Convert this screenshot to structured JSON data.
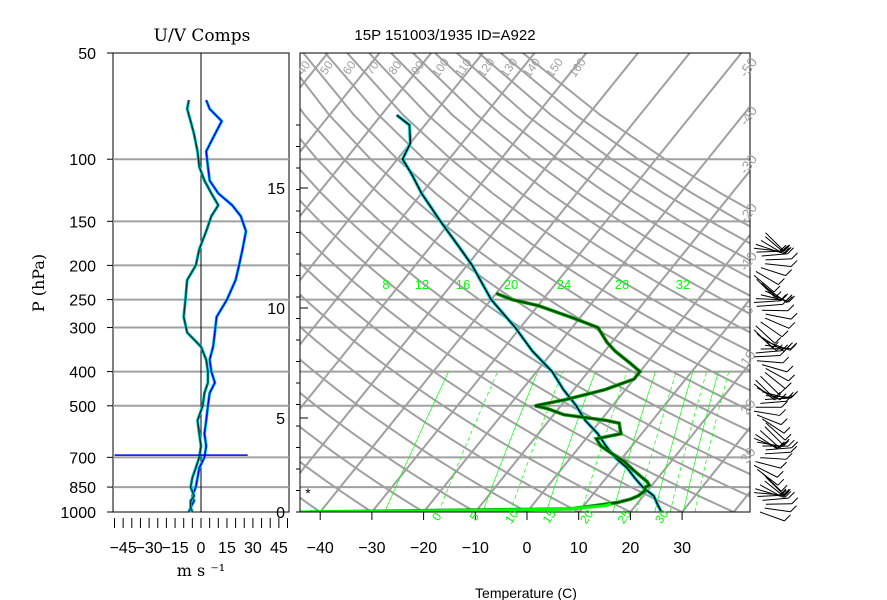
{
  "figure": {
    "title": "15P 151003/1935 ID=A922",
    "xlabel": "Temperature (C)"
  },
  "colors": {
    "temperature": "#000000",
    "temperature_under": "#00e0e0",
    "dewpoint": "#003c00",
    "dewpoint_under": "#00a000",
    "parcel": "#00ff00",
    "grid": "#a0a0a0",
    "mixing_ratio": "#00ff00",
    "u_line": "#0000ff",
    "v_line": "#00cccc"
  },
  "chart_data": [
    {
      "type": "line",
      "panel": "uv-components",
      "title": "U/V Comps",
      "xlabel": "m s ⁻¹",
      "ylabel": "P (hPa)",
      "xlim": [
        -50,
        50
      ],
      "ylim": [
        1000,
        50
      ],
      "y_scale": "log",
      "xticks": [
        "-45",
        "-30",
        "-15",
        "0",
        "15",
        "30",
        "45"
      ],
      "yticks": [
        "50",
        "100",
        "150",
        "200",
        "250",
        "300",
        "400",
        "500",
        "700",
        "850",
        "1000"
      ],
      "series": [
        {
          "name": "U",
          "p": [
            1000,
            970,
            930,
            900,
            850,
            800,
            750,
            700,
            650,
            600,
            550,
            500,
            460,
            430,
            400,
            370,
            340,
            310,
            280,
            250,
            220,
            200,
            180,
            160,
            145,
            135,
            125,
            115,
            105,
            95,
            85,
            78,
            72,
            68
          ],
          "values": [
            -7,
            -6,
            -4,
            -5,
            -3,
            -2,
            -1,
            2,
            3,
            2,
            3,
            4,
            5,
            8,
            6,
            5,
            7,
            8,
            9,
            15,
            20,
            22,
            24,
            26,
            23,
            18,
            10,
            5,
            4,
            3,
            8,
            12,
            5,
            3
          ]
        },
        {
          "name": "V",
          "p": [
            1000,
            970,
            930,
            900,
            850,
            800,
            750,
            700,
            650,
            600,
            550,
            500,
            460,
            430,
            400,
            370,
            340,
            310,
            280,
            250,
            220,
            200,
            180,
            160,
            145,
            135,
            125,
            115,
            105,
            95,
            85,
            78,
            72,
            68
          ],
          "values": [
            -5,
            -6,
            -6,
            -4,
            -6,
            -5,
            -3,
            -1,
            0,
            -1,
            -2,
            1,
            2,
            4,
            4,
            3,
            0,
            -8,
            -10,
            -9,
            -8,
            -3,
            -1,
            3,
            6,
            10,
            6,
            2,
            -1,
            -2,
            -4,
            -6,
            -8,
            -7
          ]
        }
      ]
    },
    {
      "type": "line",
      "panel": "skew-t",
      "title": "15P 151003/1935 ID=A922",
      "xlabel": "Temperature (C)",
      "xlim": [
        -45,
        40
      ],
      "ylim": [
        1000,
        50
      ],
      "y_scale": "log",
      "xticks": [
        "-40",
        "-30",
        "-20",
        "-10",
        "0",
        "10",
        "20",
        "30"
      ],
      "height_ticks_km": [
        "0",
        "5",
        "10",
        "15"
      ],
      "mixing_ratio_labels": [
        "8",
        "12",
        "16",
        "20",
        "24",
        "28",
        "32"
      ],
      "isotherm_labels_top": [
        "40",
        "50",
        "60",
        "70",
        "80",
        "90",
        "100",
        "110",
        "120",
        "130",
        "140",
        "150",
        "160"
      ],
      "isotherm_labels_right": [
        "-50",
        "-40",
        "-30",
        "-20",
        "-10",
        "0",
        "10",
        "20",
        "30"
      ],
      "isotherm_labels_bottom": [
        "0",
        "5",
        "10",
        "15",
        "20",
        "25",
        "30"
      ],
      "surface_marker": "*",
      "series": [
        {
          "name": "Temperature",
          "p": [
            1000,
            950,
            900,
            850,
            800,
            750,
            700,
            650,
            600,
            550,
            500,
            450,
            400,
            350,
            300,
            250,
            200,
            175,
            150,
            125,
            110,
            100,
            90,
            80,
            75
          ],
          "values": [
            26,
            24,
            22,
            18.5,
            15.5,
            12.5,
            8.5,
            5,
            1.5,
            -3,
            -7,
            -12,
            -17,
            -24,
            -31,
            -40,
            -49,
            -55,
            -62,
            -70,
            -75,
            -79,
            -80,
            -83,
            -87
          ]
        },
        {
          "name": "Dewpoint",
          "p": [
            1000,
            980,
            960,
            950,
            940,
            930,
            920,
            900,
            870,
            850,
            840,
            820,
            800,
            760,
            720,
            700,
            650,
            620,
            600,
            580,
            560,
            550,
            530,
            510,
            500,
            480,
            450,
            420,
            400,
            380,
            350,
            330,
            300,
            280,
            260,
            250,
            240
          ],
          "values": [
            -42,
            8,
            12,
            14,
            16,
            17,
            18,
            19,
            19.5,
            19,
            19.5,
            18.5,
            17,
            14,
            11,
            9,
            4,
            2,
            6,
            5,
            4,
            1,
            -8,
            -12,
            -15,
            -10,
            -4,
            0,
            0,
            -3,
            -8,
            -11,
            -15,
            -22,
            -30,
            -36,
            -40
          ]
        },
        {
          "name": "Parcel",
          "p": [
            1000,
            990,
            980,
            960,
            950
          ],
          "values": [
            -44,
            -10,
            8,
            14,
            15
          ]
        }
      ]
    }
  ]
}
